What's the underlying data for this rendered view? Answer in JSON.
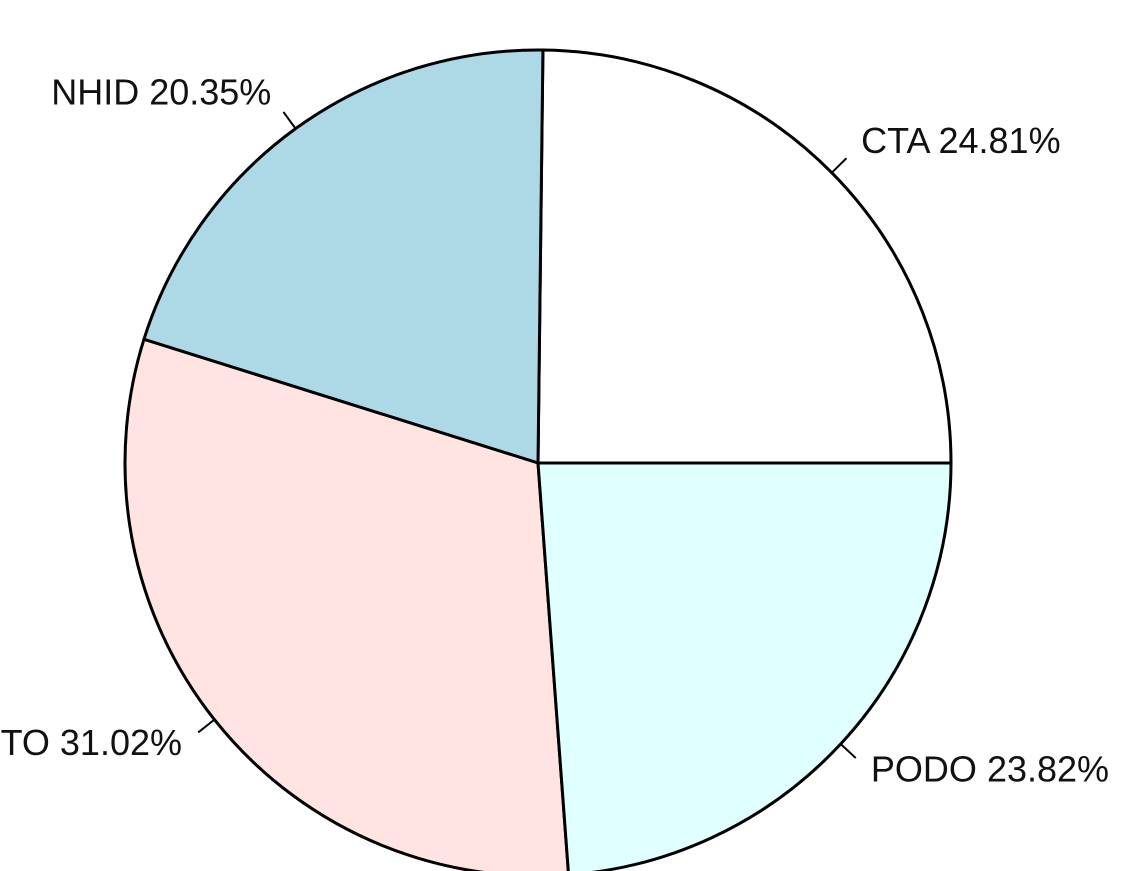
{
  "chart_data": {
    "type": "pie",
    "values": [
      24.81,
      20.35,
      31.02,
      23.82
    ],
    "value_labels": [
      "CTA 24.81%",
      "NHID 20.35%",
      "TO 31.02%",
      "PODO 23.82%"
    ],
    "colors": [
      "#ffffff",
      "#add8e6",
      "#ffe4e1",
      "#e0ffff"
    ],
    "start_angle": 0,
    "direction": "counterclockwise"
  }
}
